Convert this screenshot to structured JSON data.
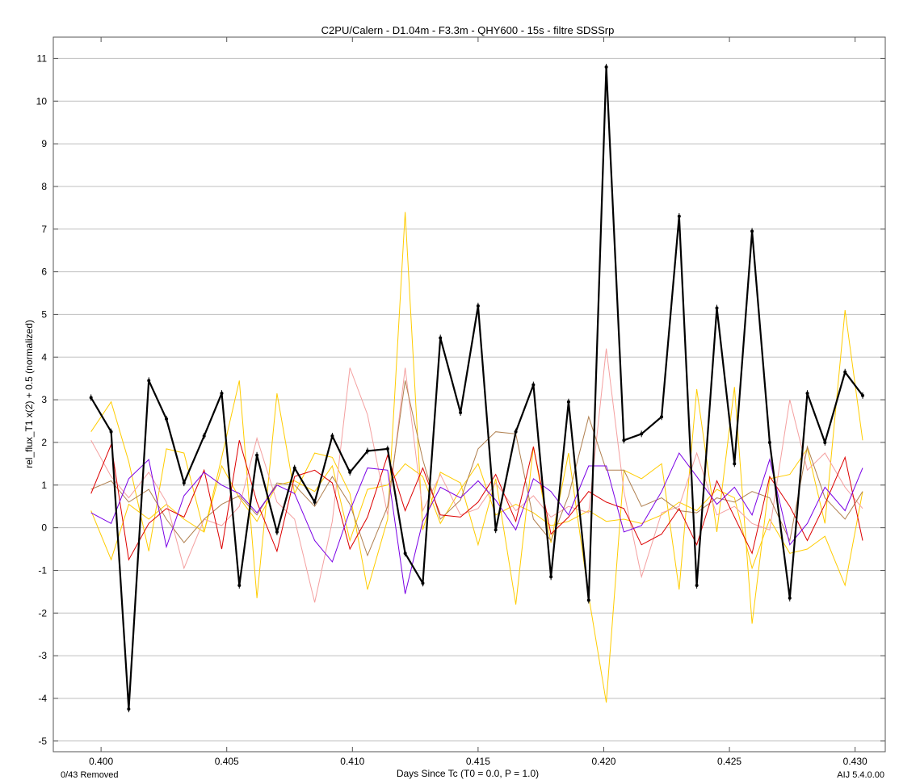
{
  "chart_data": {
    "type": "line",
    "title": "C2PU/Calern - D1.04m - F3.3m - QHY600 - 15s - filtre SDSSrp",
    "xlabel": "Days Since Tc (T0 = 0.0, P = 1.0)",
    "ylabel": "rel_flux_T1 x(2) + 0.5 (normalized)",
    "xlim": [
      0.3981,
      0.4312
    ],
    "ylim": [
      -5.25,
      11.5
    ],
    "xticks": [
      0.4,
      0.405,
      0.41,
      0.415,
      0.42,
      0.425,
      0.43
    ],
    "xtick_labels": [
      "0.400",
      "0.405",
      "0.410",
      "0.415",
      "0.420",
      "0.425",
      "0.430"
    ],
    "yticks": [
      -5,
      -4,
      -3,
      -2,
      -1,
      0,
      1,
      2,
      3,
      4,
      5,
      6,
      7,
      8,
      9,
      10,
      11
    ],
    "grid": true,
    "x": [
      0.3996,
      0.4004,
      0.4011,
      0.4019,
      0.4026,
      0.4033,
      0.4041,
      0.4048,
      0.4055,
      0.4062,
      0.407,
      0.4077,
      0.4085,
      0.4092,
      0.4099,
      0.4106,
      0.4114,
      0.4121,
      0.4128,
      0.4135,
      0.4143,
      0.415,
      0.4157,
      0.4165,
      0.4172,
      0.4179,
      0.4186,
      0.4194,
      0.4201,
      0.4208,
      0.4215,
      0.4223,
      0.423,
      0.4237,
      0.4245,
      0.4252,
      0.4259,
      0.4266,
      0.4274,
      0.4281,
      0.4288,
      0.4296,
      0.4303
    ],
    "series": [
      {
        "color": "#ffcc00",
        "width": 1,
        "markers": false,
        "values": [
          2.25,
          2.95,
          1.55,
          -0.55,
          1.85,
          1.75,
          -0.1,
          1.65,
          3.45,
          -1.65,
          3.15,
          0.8,
          1.75,
          1.65,
          0.8,
          -1.45,
          0.2,
          7.4,
          -0.05,
          1.3,
          1.05,
          -0.4,
          1.15,
          -1.8,
          1.9,
          -0.35,
          1.75,
          -1.6,
          -4.1,
          1.35,
          1.15,
          1.5,
          -1.45,
          3.25,
          -0.1,
          3.3,
          -2.25,
          1.15,
          1.25,
          1.85,
          0.1,
          5.1,
          2.05
        ]
      },
      {
        "color": "#ffcc00",
        "width": 1,
        "markers": false,
        "values": [
          0.4,
          -0.75,
          0.55,
          0.2,
          0.55,
          0.2,
          -0.1,
          1.45,
          0.7,
          0.15,
          1.0,
          1.1,
          0.85,
          1.45,
          -0.3,
          0.9,
          1.0,
          1.5,
          1.2,
          0.1,
          0.9,
          1.5,
          0.3,
          0.55,
          0.35,
          0.05,
          0.15,
          0.4,
          0.15,
          0.2,
          0.1,
          0.3,
          0.6,
          0.4,
          0.9,
          0.7,
          -0.95,
          0.2,
          -0.6,
          -0.5,
          -0.2,
          -1.35,
          0.85
        ]
      },
      {
        "color": "#f4a0a0",
        "width": 1,
        "markers": false,
        "values": [
          2.05,
          1.2,
          0.7,
          1.3,
          0.6,
          -0.95,
          0.2,
          0.05,
          0.5,
          2.1,
          0.6,
          0.2,
          -1.75,
          0.15,
          3.75,
          2.65,
          0.3,
          3.75,
          0.4,
          1.25,
          0.3,
          0.45,
          1.05,
          0.4,
          0.75,
          0.25,
          0.5,
          0.35,
          4.2,
          0.85,
          -1.15,
          0.35,
          0.5,
          1.75,
          0.3,
          0.5,
          0.1,
          -0.05,
          3.0,
          1.35,
          1.75,
          0.95,
          0.45
        ]
      },
      {
        "color": "#b08050",
        "width": 1,
        "markers": false,
        "values": [
          0.9,
          1.1,
          0.6,
          0.9,
          0.2,
          -0.35,
          0.2,
          0.55,
          0.75,
          0.3,
          1.05,
          1.0,
          0.5,
          1.2,
          0.55,
          -0.65,
          0.5,
          3.45,
          1.6,
          0.2,
          0.65,
          1.85,
          2.25,
          2.2,
          0.2,
          -0.3,
          0.75,
          2.6,
          1.35,
          1.35,
          0.5,
          0.7,
          0.4,
          0.35,
          0.7,
          0.6,
          0.85,
          0.7,
          -0.3,
          1.9,
          0.7,
          0.2,
          0.85
        ]
      },
      {
        "color": "#dd0000",
        "width": 1,
        "markers": false,
        "values": [
          0.8,
          1.95,
          -0.75,
          0.1,
          0.45,
          0.25,
          1.35,
          -0.5,
          2.05,
          0.6,
          -0.55,
          1.2,
          1.35,
          1.05,
          -0.5,
          0.25,
          1.7,
          0.4,
          1.4,
          0.3,
          0.25,
          0.6,
          1.25,
          0.15,
          1.9,
          -0.15,
          0.25,
          0.85,
          0.6,
          0.45,
          -0.4,
          -0.15,
          0.45,
          -0.4,
          1.1,
          0.25,
          -0.6,
          1.2,
          0.5,
          -0.3,
          0.55,
          1.65,
          -0.3
        ]
      },
      {
        "color": "#7a00e6",
        "width": 1,
        "markers": false,
        "values": [
          0.35,
          0.1,
          1.15,
          1.6,
          -0.45,
          0.75,
          1.3,
          1.0,
          0.8,
          0.35,
          1.0,
          0.8,
          -0.3,
          -0.8,
          0.4,
          1.4,
          1.35,
          -1.55,
          0.15,
          0.95,
          0.7,
          1.1,
          0.65,
          -0.05,
          1.15,
          0.85,
          0.3,
          1.45,
          1.45,
          -0.1,
          0.05,
          0.85,
          1.75,
          1.2,
          0.55,
          0.95,
          0.3,
          1.6,
          -0.4,
          0.1,
          0.95,
          0.4,
          1.4
        ]
      },
      {
        "color": "#000000",
        "width": 2.2,
        "markers": true,
        "values": [
          3.05,
          2.25,
          -4.25,
          3.45,
          2.55,
          1.05,
          2.15,
          3.15,
          -1.35,
          1.7,
          -0.1,
          1.4,
          0.6,
          2.15,
          1.3,
          1.8,
          1.85,
          -0.6,
          -1.3,
          4.45,
          2.7,
          5.2,
          -0.05,
          2.25,
          3.35,
          -1.15,
          2.95,
          -1.7,
          10.8,
          2.05,
          2.2,
          2.6,
          7.3,
          -1.35,
          5.15,
          1.5,
          6.95,
          2.0,
          -1.65,
          3.15,
          2.0,
          3.65,
          3.1
        ]
      }
    ]
  },
  "footer": {
    "removed": "0/43 Removed",
    "version": "AIJ 5.4.0.00"
  }
}
